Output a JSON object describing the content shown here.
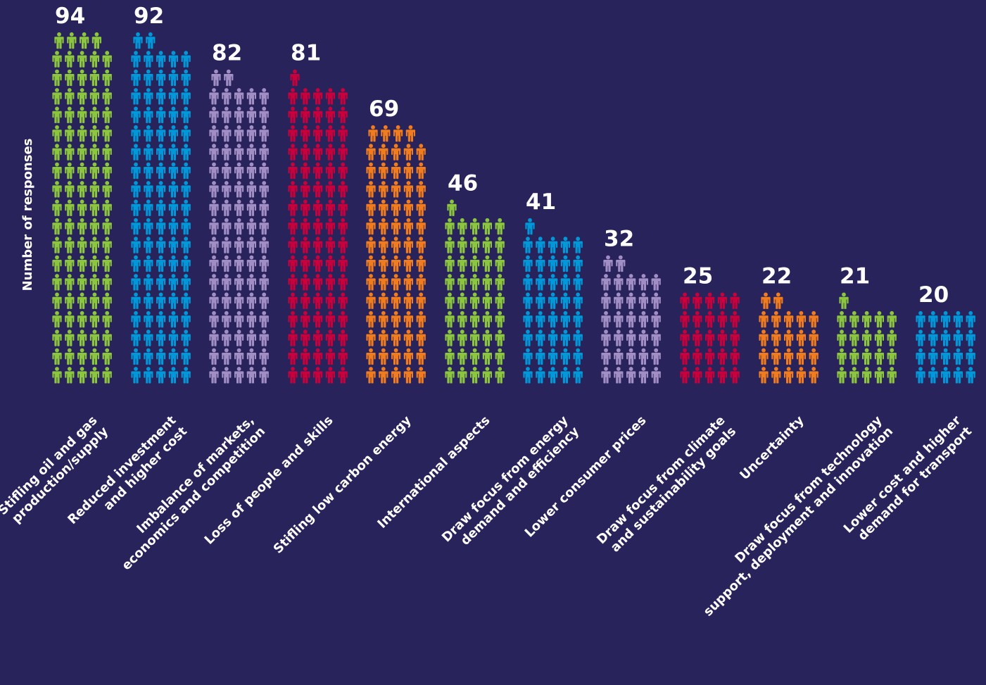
{
  "chart_data": {
    "type": "bar",
    "ylabel": "Number of responses",
    "xlabel": "",
    "icons_per_row": 5,
    "icon_name": "person-icon",
    "categories": [
      [
        "Stifling oil and gas",
        "production/supply"
      ],
      [
        "Reduced investment",
        "and higher cost"
      ],
      [
        "Imbalance of markets,",
        "economics and competition"
      ],
      [
        "Loss of people and skills"
      ],
      [
        "Stifling low carbon energy"
      ],
      [
        "International aspects"
      ],
      [
        "Draw focus from energy",
        "demand and efficiency"
      ],
      [
        "Lower consumer prices"
      ],
      [
        "Draw focus from climate",
        "and sustainability goals"
      ],
      [
        "Uncertainty"
      ],
      [
        "Draw focus from technology",
        "support, deployment and innovation"
      ],
      [
        "Lower cost and higher",
        "demand for transport"
      ]
    ],
    "values": [
      94,
      92,
      82,
      81,
      69,
      46,
      41,
      32,
      25,
      22,
      21,
      20
    ],
    "colors": [
      "#8cc63f",
      "#0098d8",
      "#a08ec4",
      "#c8003c",
      "#f07c1e",
      "#8cc63f",
      "#0098d8",
      "#a08ec4",
      "#c8003c",
      "#f07c1e",
      "#8cc63f",
      "#0098d8"
    ],
    "background": "#29235c"
  }
}
